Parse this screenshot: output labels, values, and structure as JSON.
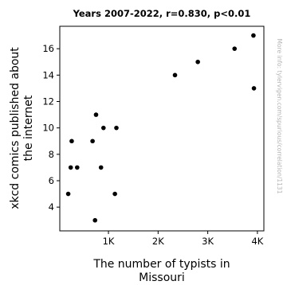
{
  "chart_data": {
    "type": "scatter",
    "title": "Years 2007-2022, r=0.830, p<0.01",
    "xlabel": [
      "The number of typists in",
      "Missouri"
    ],
    "ylabel": [
      "xkcd comics published about",
      "the internet"
    ],
    "watermark": "More info: tylervigen.com/spurious/correlation/1131",
    "xlim": [
      20,
      4130
    ],
    "ylim": [
      2.2,
      17.7
    ],
    "x_ticks": [
      {
        "value": 1000,
        "label": "1K"
      },
      {
        "value": 2000,
        "label": "2K"
      },
      {
        "value": 3000,
        "label": "3K"
      },
      {
        "value": 4000,
        "label": "4K"
      }
    ],
    "y_ticks": [
      4,
      6,
      8,
      10,
      12,
      14,
      16
    ],
    "grid": false,
    "colors": {
      "points": "#000000",
      "axes": "#000000",
      "watermark": "#b5b5b5"
    },
    "points": [
      {
        "x": 190,
        "y": 5
      },
      {
        "x": 240,
        "y": 7
      },
      {
        "x": 260,
        "y": 9
      },
      {
        "x": 370,
        "y": 7
      },
      {
        "x": 680,
        "y": 9
      },
      {
        "x": 730,
        "y": 3
      },
      {
        "x": 750,
        "y": 11
      },
      {
        "x": 850,
        "y": 7
      },
      {
        "x": 900,
        "y": 10
      },
      {
        "x": 1130,
        "y": 5
      },
      {
        "x": 1160,
        "y": 10
      },
      {
        "x": 2340,
        "y": 14
      },
      {
        "x": 2800,
        "y": 15
      },
      {
        "x": 3540,
        "y": 16
      },
      {
        "x": 3920,
        "y": 17
      },
      {
        "x": 3930,
        "y": 13
      }
    ]
  }
}
